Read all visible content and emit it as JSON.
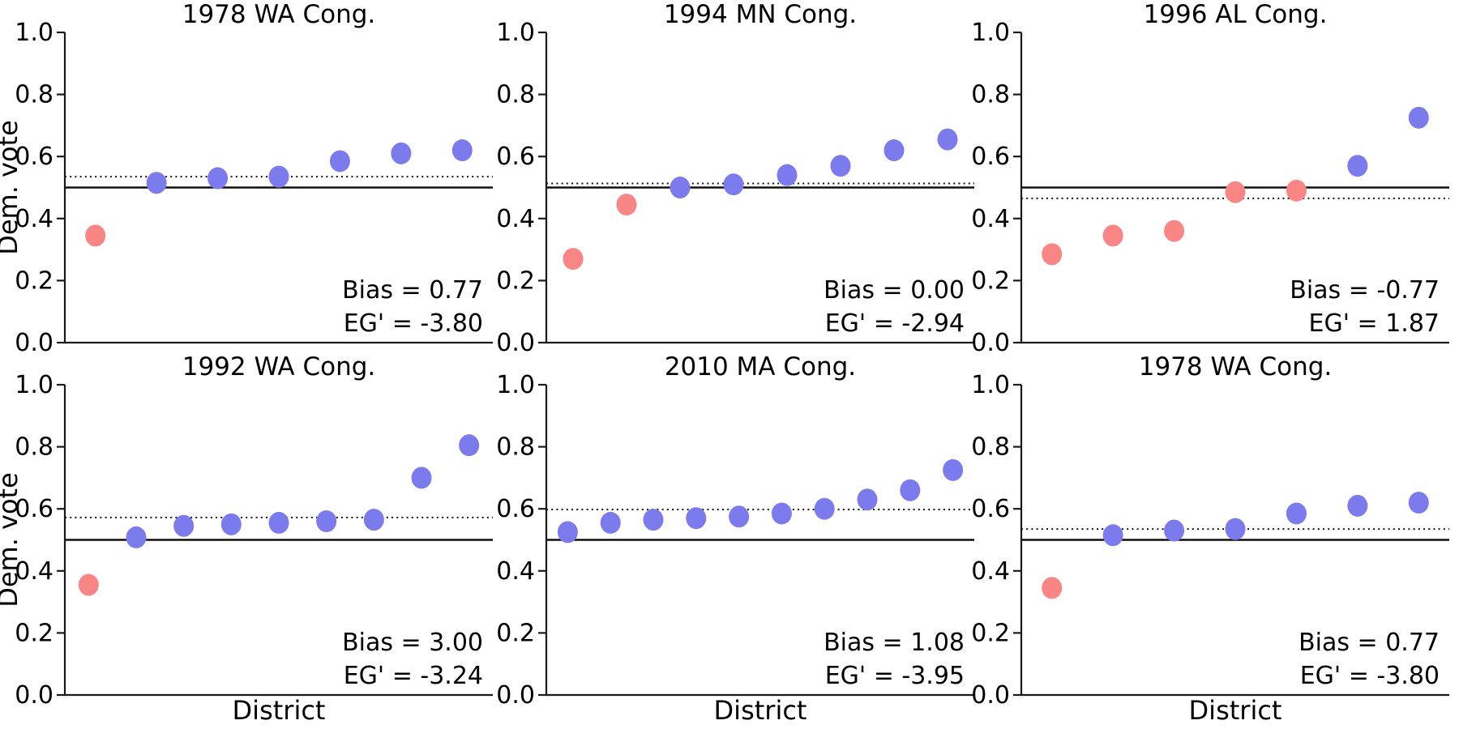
{
  "figure": {
    "ylabel": "Dem. vote",
    "xlabel": "District",
    "background": "#ffffff"
  },
  "colors": {
    "dem_point": "#7b7bee",
    "rep_point": "#f98585",
    "solid_line": "#111111",
    "dotted_line": "#111111",
    "spine": "#1a1a1a",
    "text": "#000000"
  },
  "chart_data": [
    {
      "type": "scatter",
      "title": "1978 WA Cong.",
      "show_ylabel": true,
      "show_xlabel": false,
      "ylim": [
        0.0,
        1.0
      ],
      "yticks": [
        "0.0",
        "0.2",
        "0.4",
        "0.6",
        "0.8",
        "1.0"
      ],
      "x": [
        1,
        2,
        3,
        4,
        5,
        6,
        7
      ],
      "values": [
        0.345,
        0.515,
        0.53,
        0.535,
        0.585,
        0.61,
        0.62
      ],
      "parties": [
        "R",
        "D",
        "D",
        "D",
        "D",
        "D",
        "D"
      ],
      "solid_line": 0.5,
      "dotted_line": 0.535,
      "annotations": {
        "bias": "Bias = 0.77",
        "eg": "EG' = -3.80"
      }
    },
    {
      "type": "scatter",
      "title": "1994 MN Cong.",
      "show_ylabel": false,
      "show_xlabel": false,
      "ylim": [
        0.0,
        1.0
      ],
      "yticks": [
        "0.0",
        "0.2",
        "0.4",
        "0.6",
        "0.8",
        "1.0"
      ],
      "x": [
        1,
        2,
        3,
        4,
        5,
        6,
        7,
        8
      ],
      "values": [
        0.27,
        0.445,
        0.5,
        0.51,
        0.54,
        0.57,
        0.62,
        0.655
      ],
      "parties": [
        "R",
        "R",
        "D",
        "D",
        "D",
        "D",
        "D",
        "D"
      ],
      "solid_line": 0.5,
      "dotted_line": 0.513,
      "annotations": {
        "bias": "Bias = 0.00",
        "eg": "EG' = -2.94"
      }
    },
    {
      "type": "scatter",
      "title": "1996 AL Cong.",
      "show_ylabel": false,
      "show_xlabel": false,
      "ylim": [
        0.0,
        1.0
      ],
      "yticks": [
        "0.0",
        "0.2",
        "0.4",
        "0.6",
        "0.8",
        "1.0"
      ],
      "x": [
        1,
        2,
        3,
        4,
        5,
        6,
        7
      ],
      "values": [
        0.285,
        0.345,
        0.36,
        0.485,
        0.49,
        0.57,
        0.725
      ],
      "parties": [
        "R",
        "R",
        "R",
        "R",
        "R",
        "D",
        "D"
      ],
      "solid_line": 0.5,
      "dotted_line": 0.465,
      "annotations": {
        "bias": "Bias = -0.77",
        "eg": "EG' = 1.87"
      }
    },
    {
      "type": "scatter",
      "title": "1992 WA Cong.",
      "show_ylabel": true,
      "show_xlabel": true,
      "ylim": [
        0.0,
        1.0
      ],
      "yticks": [
        "0.0",
        "0.2",
        "0.4",
        "0.6",
        "0.8",
        "1.0"
      ],
      "x": [
        1,
        2,
        3,
        4,
        5,
        6,
        7,
        8,
        9
      ],
      "values": [
        0.355,
        0.508,
        0.545,
        0.55,
        0.555,
        0.56,
        0.565,
        0.7,
        0.805
      ],
      "parties": [
        "R",
        "D",
        "D",
        "D",
        "D",
        "D",
        "D",
        "D",
        "D"
      ],
      "solid_line": 0.5,
      "dotted_line": 0.572,
      "annotations": {
        "bias": "Bias = 3.00",
        "eg": "EG' = -3.24"
      }
    },
    {
      "type": "scatter",
      "title": "2010 MA Cong.",
      "show_ylabel": false,
      "show_xlabel": true,
      "ylim": [
        0.0,
        1.0
      ],
      "yticks": [
        "0.0",
        "0.2",
        "0.4",
        "0.6",
        "0.8",
        "1.0"
      ],
      "x": [
        1,
        2,
        3,
        4,
        5,
        6,
        7,
        8,
        9,
        10
      ],
      "values": [
        0.525,
        0.555,
        0.565,
        0.57,
        0.575,
        0.585,
        0.6,
        0.63,
        0.66,
        0.725
      ],
      "parties": [
        "D",
        "D",
        "D",
        "D",
        "D",
        "D",
        "D",
        "D",
        "D",
        "D"
      ],
      "solid_line": 0.5,
      "dotted_line": 0.598,
      "annotations": {
        "bias": "Bias = 1.08",
        "eg": "EG' = -3.95"
      }
    },
    {
      "type": "scatter",
      "title": "1978 WA Cong.",
      "show_ylabel": false,
      "show_xlabel": true,
      "ylim": [
        0.0,
        1.0
      ],
      "yticks": [
        "0.0",
        "0.2",
        "0.4",
        "0.6",
        "0.8",
        "1.0"
      ],
      "x": [
        1,
        2,
        3,
        4,
        5,
        6,
        7
      ],
      "values": [
        0.345,
        0.515,
        0.53,
        0.535,
        0.585,
        0.61,
        0.62
      ],
      "parties": [
        "R",
        "D",
        "D",
        "D",
        "D",
        "D",
        "D"
      ],
      "solid_line": 0.5,
      "dotted_line": 0.535,
      "annotations": {
        "bias": "Bias = 0.77",
        "eg": "EG' = -3.80"
      }
    }
  ]
}
